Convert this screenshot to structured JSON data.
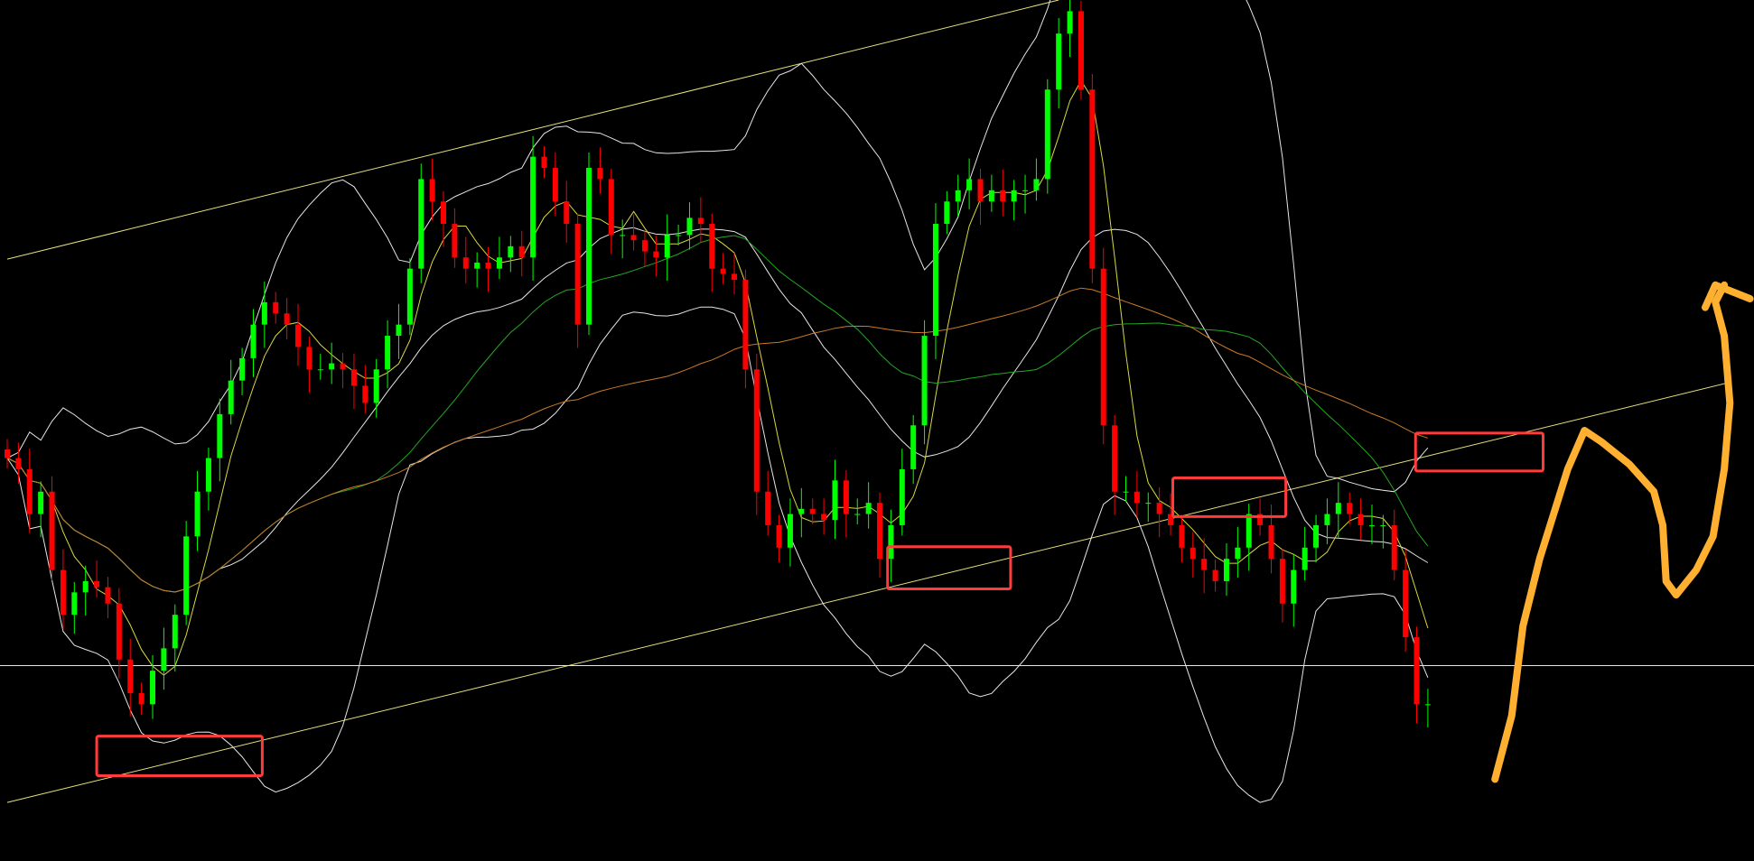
{
  "chart_data": {
    "type": "candlestick",
    "title": "",
    "xlabel": "",
    "ylabel": "",
    "ylim": [
      0,
      100
    ],
    "xlim": [
      0,
      157
    ],
    "grid": false,
    "background": "#000000",
    "colors": {
      "up": "#00ff00",
      "down": "#ff0000",
      "bands": "#e6e6e6",
      "ma_fast": "#d8d840",
      "ma_mid": "#22a822",
      "ma_slow": "#c87a28",
      "trendline": "#e6e07a",
      "hline": "#e6e6e6",
      "box": "#ff3b3b",
      "hand_arrow": "#ffb030"
    },
    "closes": [
      46.8,
      45.5,
      40.3,
      42.9,
      33.8,
      28.6,
      31.2,
      32.5,
      31.8,
      29.9,
      23.4,
      19.5,
      18.2,
      22.1,
      24.7,
      28.6,
      37.7,
      42.9,
      46.8,
      51.9,
      55.8,
      58.4,
      62.3,
      64.9,
      63.6,
      62.3,
      59.7,
      57.1,
      57.1,
      57.8,
      57.1,
      55.2,
      53.2,
      57.1,
      61.0,
      62.3,
      68.8,
      79.2,
      76.6,
      74.0,
      70.1,
      68.8,
      69.5,
      68.8,
      70.1,
      71.4,
      70.1,
      81.8,
      80.5,
      76.6,
      74.0,
      62.3,
      80.5,
      79.2,
      72.7,
      72.7,
      72.1,
      70.8,
      70.1,
      72.7,
      72.7,
      74.7,
      74.0,
      68.8,
      68.2,
      67.5,
      57.1,
      42.9,
      39.0,
      36.4,
      40.3,
      40.9,
      40.3,
      39.6,
      44.2,
      40.3,
      40.3,
      41.6,
      35.1,
      39.0,
      45.5,
      50.6,
      61.0,
      74.0,
      76.6,
      77.9,
      79.2,
      76.6,
      77.9,
      76.6,
      77.9,
      77.9,
      79.2,
      89.6,
      96.1,
      98.7,
      89.6,
      68.8,
      50.6,
      42.9,
      42.9,
      41.6,
      41.6,
      40.3,
      39.0,
      36.4,
      35.1,
      33.8,
      32.5,
      35.1,
      36.4,
      40.3,
      39.0,
      35.1,
      29.9,
      33.8,
      36.4,
      39.0,
      40.3,
      41.6,
      40.3,
      39.0,
      39.0,
      39.0,
      33.8,
      26.0,
      18.2,
      18.2
    ],
    "indicators": [
      {
        "type": "bollinger",
        "period": 20,
        "stddev": 2
      },
      {
        "type": "sma",
        "period": 5,
        "color_key": "ma_fast"
      },
      {
        "type": "sma",
        "period": 30,
        "color_key": "ma_mid"
      },
      {
        "type": "sma",
        "period": 60,
        "color_key": "ma_slow"
      }
    ],
    "trendlines": [
      {
        "from": [
          0,
          69.9
        ],
        "to": [
          94,
          100
        ]
      },
      {
        "from": [
          0,
          6.8
        ],
        "to": [
          154,
          55.6
        ]
      }
    ],
    "hlines": [
      22.7
    ],
    "boxes": [
      {
        "x": [
          8,
          22.8
        ],
        "y": [
          9.9,
          14.5
        ]
      },
      {
        "x": [
          78.7,
          89.7
        ],
        "y": [
          31.6,
          36.5
        ]
      },
      {
        "x": [
          104.2,
          114.3
        ],
        "y": [
          40.0,
          44.5
        ]
      },
      {
        "x": [
          125.9,
          137.3
        ],
        "y": [
          45.3,
          49.7
        ]
      }
    ],
    "hand_arrow": {
      "path": [
        [
          133,
          9.5
        ],
        [
          134.5,
          16.9
        ],
        [
          135.5,
          27.3
        ],
        [
          137,
          35.1
        ],
        [
          139.5,
          45.5
        ],
        [
          141,
          50
        ],
        [
          142.5,
          48.7
        ],
        [
          145,
          46.1
        ],
        [
          147.2,
          42.9
        ],
        [
          148,
          39
        ],
        [
          148.3,
          32.5
        ],
        [
          149.2,
          30.9
        ],
        [
          151,
          33.8
        ],
        [
          152.5,
          37.7
        ],
        [
          153.5,
          45.5
        ],
        [
          154,
          53.2
        ],
        [
          153.5,
          61
        ],
        [
          152.7,
          64.9
        ],
        [
          153.5,
          66.9
        ]
      ],
      "head": [
        [
          151.8,
          64.3
        ],
        [
          152.7,
          66.9
        ],
        [
          155.8,
          65.3
        ]
      ]
    }
  }
}
